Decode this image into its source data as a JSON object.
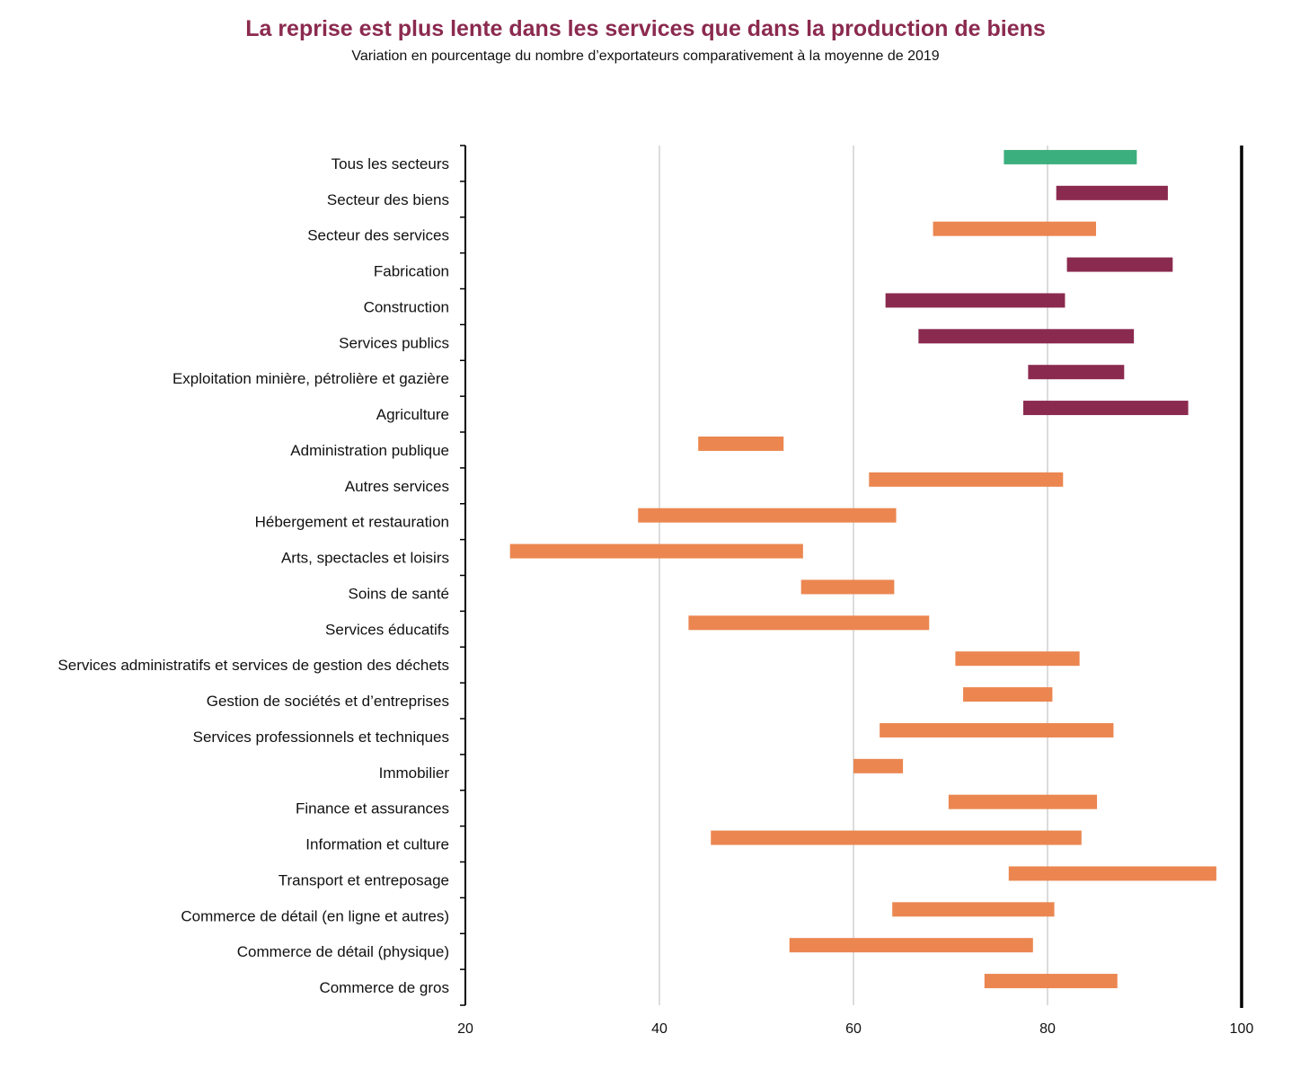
{
  "chart_data": {
    "type": "bar",
    "orientation": "horizontal",
    "title": "La reprise est plus lente dans les services que dans la production de biens",
    "subtitle": "Variation en pourcentage du nombre d’exportateurs comparativement à la moyenne de 2019",
    "xlim": [
      20,
      100
    ],
    "xticks": [
      20,
      40,
      60,
      80,
      100
    ],
    "grid": true,
    "colors": {
      "total": "#3CAF7F",
      "goods": "#8B2A4F",
      "services": "#EB8650"
    },
    "categories": [
      "Tous les secteurs",
      "Secteur des biens",
      "Secteur des services",
      "Fabrication",
      "Construction",
      "Services publics",
      "Exploitation minière, pétrolière et gazière",
      "Agriculture",
      "Administration publique",
      "Autres services",
      "Hébergement et restauration",
      "Arts, spectacles et loisirs",
      "Soins de santé",
      "Services éducatifs",
      "Services administratifs et services de gestion des déchets",
      "Gestion de sociétés et d’entreprises",
      "Services professionnels et techniques",
      "Immobilier",
      "Finance et assurances",
      "Information et culture",
      "Transport et entreposage",
      "Commerce de détail (en ligne et autres)",
      "Commerce de détail (physique)",
      "Commerce de gros"
    ],
    "ranges": [
      [
        75.5,
        89.2
      ],
      [
        80.9,
        92.4
      ],
      [
        68.2,
        85.0
      ],
      [
        82.0,
        92.9
      ],
      [
        63.3,
        81.8
      ],
      [
        66.7,
        88.9
      ],
      [
        78.0,
        87.9
      ],
      [
        77.5,
        94.5
      ],
      [
        44.0,
        52.8
      ],
      [
        61.6,
        81.6
      ],
      [
        37.8,
        64.4
      ],
      [
        24.6,
        54.8
      ],
      [
        54.6,
        64.2
      ],
      [
        43.0,
        67.8
      ],
      [
        70.5,
        83.3
      ],
      [
        71.3,
        80.5
      ],
      [
        62.7,
        86.8
      ],
      [
        60.0,
        65.1
      ],
      [
        69.8,
        85.1
      ],
      [
        45.3,
        83.5
      ],
      [
        76.0,
        97.4
      ],
      [
        64.0,
        80.7
      ],
      [
        53.4,
        78.5
      ],
      [
        73.5,
        87.2
      ]
    ],
    "groups": [
      "total",
      "goods",
      "services",
      "goods",
      "goods",
      "goods",
      "goods",
      "goods",
      "services",
      "services",
      "services",
      "services",
      "services",
      "services",
      "services",
      "services",
      "services",
      "services",
      "services",
      "services",
      "services",
      "services",
      "services",
      "services"
    ]
  }
}
